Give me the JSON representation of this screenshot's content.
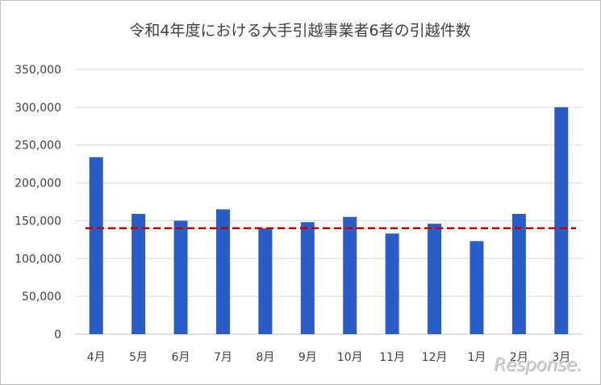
{
  "chart_data": {
    "type": "bar",
    "title": "令和4年度における大手引越事業者6者の引越件数",
    "xlabel": "",
    "ylabel": "",
    "categories": [
      "4月",
      "5月",
      "6月",
      "7月",
      "8月",
      "9月",
      "10月",
      "11月",
      "12月",
      "1月",
      "2月",
      "3月"
    ],
    "values": [
      234000,
      159000,
      150000,
      165000,
      140000,
      148000,
      155000,
      133000,
      146000,
      123000,
      159000,
      300000
    ],
    "ylim": [
      0,
      350000
    ],
    "yticks": [
      0,
      50000,
      100000,
      150000,
      200000,
      250000,
      300000,
      350000
    ],
    "ytick_labels": [
      "0",
      "50,000",
      "100,000",
      "150,000",
      "200,000",
      "250,000",
      "300,000",
      "350,000"
    ],
    "reference_line": {
      "value": 140000,
      "style": "dashed",
      "color": "#c00000"
    },
    "bar_color": "#2a5cc8",
    "grid": true,
    "legend": "none"
  },
  "watermark": {
    "text": "Response."
  }
}
